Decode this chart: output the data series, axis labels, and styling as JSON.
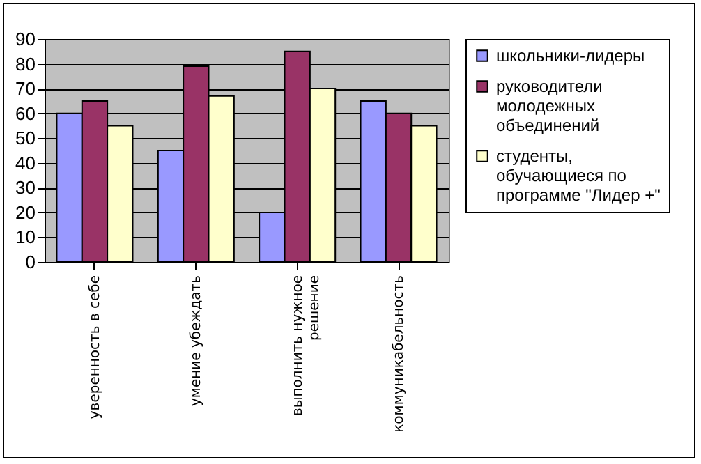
{
  "chart_data": {
    "type": "bar",
    "categories": [
      "уверенность в себе",
      "умение убеждать",
      "выполнить нужное решение",
      "коммуникабельность"
    ],
    "series": [
      {
        "name": "школьники-лидеры",
        "color": "#9999ff",
        "values": [
          60,
          45,
          20,
          65
        ]
      },
      {
        "name": "руководители молодежных объединений",
        "color": "#993366",
        "values": [
          65,
          79,
          85,
          60
        ]
      },
      {
        "name": "студенты, обучающиеся по программе \"Лидер +\"",
        "color": "#ffffcc",
        "values": [
          55,
          67,
          70,
          55
        ]
      }
    ],
    "ylim": [
      0,
      90
    ],
    "yticks": [
      0,
      10,
      20,
      30,
      40,
      50,
      60,
      70,
      80,
      90
    ],
    "grid": "y",
    "legend": "right"
  }
}
